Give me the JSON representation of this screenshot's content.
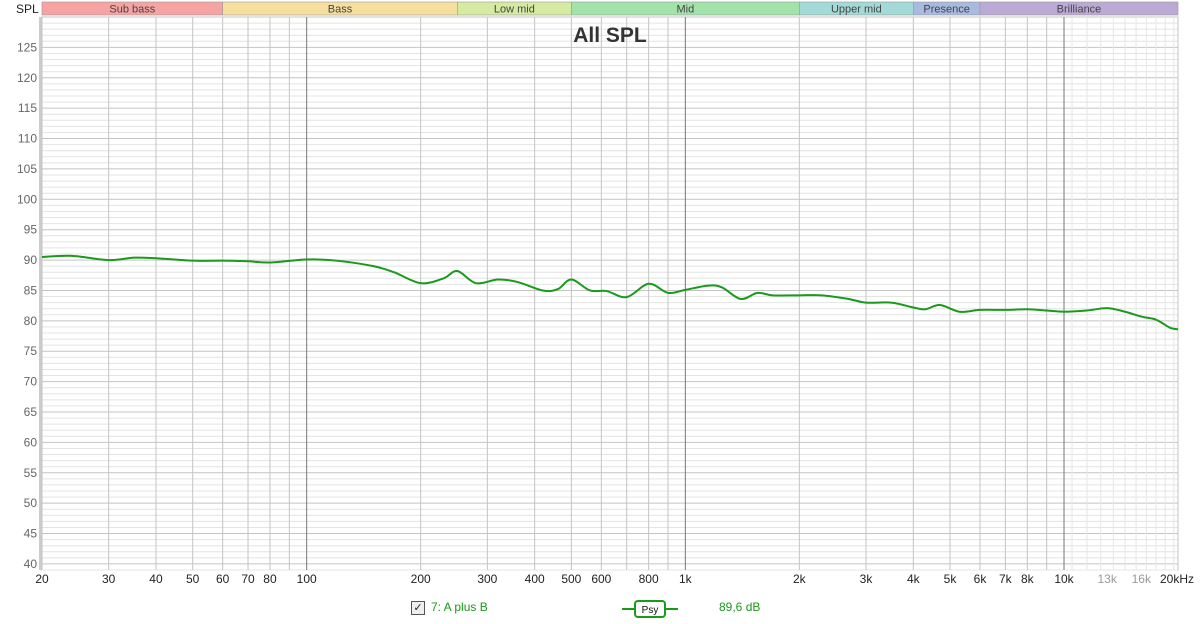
{
  "chart_data": {
    "type": "line",
    "title": "All SPL",
    "ylabel": "SPL",
    "xlabel": "",
    "x_scale": "log",
    "xlim": [
      20,
      20000
    ],
    "ylim": [
      39,
      130
    ],
    "grid": true,
    "y_ticks": [
      "40",
      "45",
      "50",
      "55",
      "60",
      "65",
      "70",
      "75",
      "80",
      "85",
      "90",
      "95",
      "100",
      "105",
      "110",
      "115",
      "120",
      "125"
    ],
    "x_ticks": [
      {
        "f": 20,
        "label": "20"
      },
      {
        "f": 30,
        "label": "30"
      },
      {
        "f": 40,
        "label": "40"
      },
      {
        "f": 50,
        "label": "50"
      },
      {
        "f": 60,
        "label": "60"
      },
      {
        "f": 70,
        "label": "70"
      },
      {
        "f": 80,
        "label": "80"
      },
      {
        "f": 100,
        "label": "100"
      },
      {
        "f": 200,
        "label": "200"
      },
      {
        "f": 300,
        "label": "300"
      },
      {
        "f": 400,
        "label": "400"
      },
      {
        "f": 500,
        "label": "500"
      },
      {
        "f": 600,
        "label": "600"
      },
      {
        "f": 800,
        "label": "800"
      },
      {
        "f": 1000,
        "label": "1k"
      },
      {
        "f": 2000,
        "label": "2k"
      },
      {
        "f": 3000,
        "label": "3k"
      },
      {
        "f": 4000,
        "label": "4k"
      },
      {
        "f": 5000,
        "label": "5k"
      },
      {
        "f": 6000,
        "label": "6k"
      },
      {
        "f": 7000,
        "label": "7k"
      },
      {
        "f": 8000,
        "label": "8k"
      },
      {
        "f": 10000,
        "label": "10k"
      },
      {
        "f": 13000,
        "label": "13k",
        "muted": true
      },
      {
        "f": 16000,
        "label": "16k",
        "muted": true
      },
      {
        "f": 20000,
        "label": "20kHz"
      }
    ],
    "bands": [
      {
        "name": "Sub bass",
        "from": 20,
        "to": 60,
        "color": "#f5a3a3"
      },
      {
        "name": "Bass",
        "from": 60,
        "to": 250,
        "color": "#f6df9e"
      },
      {
        "name": "Low mid",
        "from": 250,
        "to": 500,
        "color": "#d5eba2"
      },
      {
        "name": "Mid",
        "from": 500,
        "to": 2000,
        "color": "#a3e2ab"
      },
      {
        "name": "Upper mid",
        "from": 2000,
        "to": 4000,
        "color": "#a3d9d6"
      },
      {
        "name": "Presence",
        "from": 4000,
        "to": 6000,
        "color": "#a9badf"
      },
      {
        "name": "Brilliance",
        "from": 6000,
        "to": 20000,
        "color": "#bcaad6"
      }
    ],
    "series": [
      {
        "name": "7: A plus B",
        "color": "#1a9a1a",
        "x": [
          20,
          24,
          30,
          35,
          40,
          50,
          60,
          70,
          80,
          100,
          120,
          150,
          170,
          200,
          230,
          250,
          280,
          320,
          360,
          420,
          460,
          500,
          560,
          620,
          700,
          800,
          900,
          1000,
          1150,
          1250,
          1400,
          1550,
          1700,
          2000,
          2300,
          2700,
          3000,
          3500,
          4000,
          4300,
          4700,
          5300,
          6000,
          7000,
          8000,
          9000,
          10000,
          11500,
          13000,
          14500,
          16000,
          17500,
          19000,
          20000
        ],
        "y": [
          90.5,
          90.7,
          90.0,
          90.4,
          90.3,
          89.9,
          89.9,
          89.8,
          89.6,
          90.1,
          89.9,
          89.0,
          88.0,
          86.2,
          87.0,
          88.2,
          86.2,
          86.8,
          86.4,
          85.0,
          85.2,
          86.8,
          85.0,
          84.9,
          83.9,
          86.1,
          84.6,
          85.1,
          85.8,
          85.5,
          83.6,
          84.6,
          84.2,
          84.2,
          84.2,
          83.6,
          83.0,
          83.0,
          82.2,
          81.9,
          82.6,
          81.5,
          81.8,
          81.8,
          81.9,
          81.7,
          81.5,
          81.7,
          82.1,
          81.5,
          80.7,
          80.2,
          78.9,
          78.6
        ]
      }
    ]
  },
  "legend": {
    "checked": true,
    "checkbox_glyph": "✓",
    "label": "7: A plus B",
    "smoothing": "Psy",
    "value": "89,6 dB"
  }
}
